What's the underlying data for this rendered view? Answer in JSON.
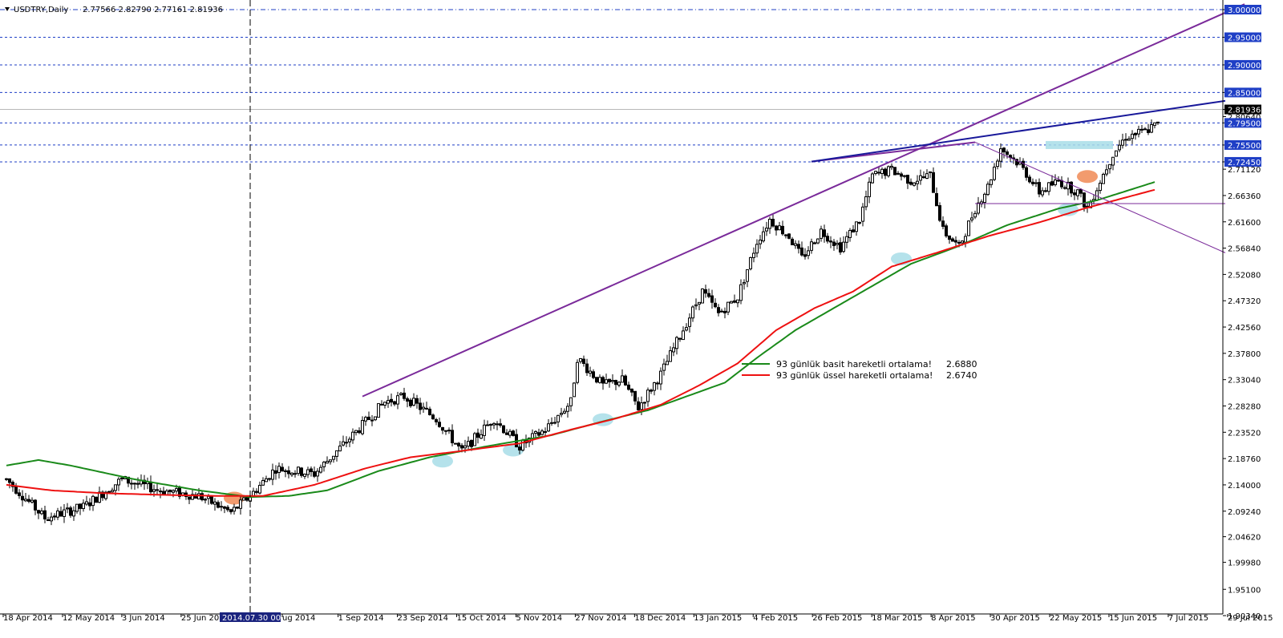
{
  "header": {
    "symbol": "USDTRY,Daily",
    "ohlc": "2.77566 2.82790 2.77161 2.81936"
  },
  "colors": {
    "candle": "#000000",
    "hline": "#1f3fc6",
    "sma": "#1a8a1a",
    "ema": "#ee1111",
    "channel": "#7a2a9a",
    "trendline": "#18189a",
    "price_tag_bg": "#000000",
    "level_tag_bg": "#1f3fc6",
    "highlight_blue": "#a8dde8",
    "highlight_orange": "#f08a55"
  },
  "chart_data": {
    "type": "candlestick",
    "symbol": "USDTRY",
    "timeframe": "Daily",
    "ylim": [
      1.9035,
      3.0
    ],
    "grid": false,
    "y_ticks": [
      "3.00000",
      "2.95000",
      "2.90000",
      "2.85000",
      "2.81936",
      "2.80640",
      "2.79500",
      "2.75500",
      "2.72450",
      "2.71120",
      "2.66360",
      "2.61600",
      "2.56840",
      "2.52080",
      "2.47320",
      "2.42560",
      "2.37800",
      "2.33040",
      "2.28280",
      "2.23520",
      "2.18760",
      "2.14000",
      "2.09240",
      "2.04620",
      "1.99980",
      "1.95100",
      "1.90340"
    ],
    "x_ticks": [
      "18 Apr 2014",
      "12 May 2014",
      "3 Jun 2014",
      "25 Jun 2014",
      "2014.07.30 00:00",
      "ug 2014",
      "1 Sep 2014",
      "23 Sep 2014",
      "15 Oct 2014",
      "5 Nov 2014",
      "27 Nov 2014",
      "18 Dec 2014",
      "13 Jan 2015",
      "4 Feb 2015",
      "26 Feb 2015",
      "18 Mar 2015",
      "8 Apr 2015",
      "30 Apr 2015",
      "22 May 2015",
      "15 Jun 2015",
      "7 Jul 2015",
      "29 Jul 2015"
    ],
    "x_tick_positions": [
      0,
      17,
      34,
      51,
      68,
      80,
      96,
      113,
      130,
      147,
      164,
      181,
      198,
      215,
      232,
      249,
      266,
      283,
      300,
      317,
      334,
      351
    ],
    "crosshair_index": 76,
    "crosshair_date": "2014.07.30 00:00",
    "last_price": 2.81936,
    "horizontal_levels": [
      3.0,
      2.95,
      2.9,
      2.85,
      2.795,
      2.755,
      2.7245
    ],
    "guide_anchors": [
      {
        "d": 0,
        "p": 2.15
      },
      {
        "d": 12,
        "p": 2.08
      },
      {
        "d": 24,
        "p": 2.1
      },
      {
        "d": 36,
        "p": 2.15
      },
      {
        "d": 48,
        "p": 2.13
      },
      {
        "d": 60,
        "p": 2.12
      },
      {
        "d": 70,
        "p": 2.09
      },
      {
        "d": 76,
        "p": 2.12
      },
      {
        "d": 84,
        "p": 2.17
      },
      {
        "d": 96,
        "p": 2.16
      },
      {
        "d": 108,
        "p": 2.23
      },
      {
        "d": 118,
        "p": 2.29
      },
      {
        "d": 124,
        "p": 2.3
      },
      {
        "d": 134,
        "p": 2.26
      },
      {
        "d": 142,
        "p": 2.2
      },
      {
        "d": 152,
        "p": 2.26
      },
      {
        "d": 160,
        "p": 2.21
      },
      {
        "d": 168,
        "p": 2.24
      },
      {
        "d": 176,
        "p": 2.29
      },
      {
        "d": 178,
        "p": 2.37
      },
      {
        "d": 186,
        "p": 2.32
      },
      {
        "d": 192,
        "p": 2.33
      },
      {
        "d": 197,
        "p": 2.28
      },
      {
        "d": 204,
        "p": 2.34
      },
      {
        "d": 210,
        "p": 2.41
      },
      {
        "d": 217,
        "p": 2.49
      },
      {
        "d": 222,
        "p": 2.45
      },
      {
        "d": 228,
        "p": 2.48
      },
      {
        "d": 234,
        "p": 2.58
      },
      {
        "d": 238,
        "p": 2.62
      },
      {
        "d": 244,
        "p": 2.59
      },
      {
        "d": 248,
        "p": 2.55
      },
      {
        "d": 254,
        "p": 2.6
      },
      {
        "d": 260,
        "p": 2.57
      },
      {
        "d": 266,
        "p": 2.62
      },
      {
        "d": 270,
        "p": 2.7
      },
      {
        "d": 276,
        "p": 2.71
      },
      {
        "d": 282,
        "p": 2.69
      },
      {
        "d": 288,
        "p": 2.7
      },
      {
        "d": 292,
        "p": 2.6
      },
      {
        "d": 297,
        "p": 2.57
      },
      {
        "d": 302,
        "p": 2.64
      },
      {
        "d": 306,
        "p": 2.68
      },
      {
        "d": 310,
        "p": 2.75
      },
      {
        "d": 316,
        "p": 2.72
      },
      {
        "d": 322,
        "p": 2.67
      },
      {
        "d": 328,
        "p": 2.69
      },
      {
        "d": 334,
        "p": 2.67
      },
      {
        "d": 337,
        "p": 2.64
      },
      {
        "d": 341,
        "p": 2.69
      },
      {
        "d": 345,
        "p": 2.74
      },
      {
        "d": 349,
        "p": 2.77
      },
      {
        "d": 355,
        "p": 2.78
      },
      {
        "d": 358,
        "p": 2.79
      }
    ],
    "sma_anchors": [
      {
        "d": 0,
        "p": 2.175
      },
      {
        "d": 10,
        "p": 2.185
      },
      {
        "d": 20,
        "p": 2.175
      },
      {
        "d": 40,
        "p": 2.15
      },
      {
        "d": 60,
        "p": 2.13
      },
      {
        "d": 76,
        "p": 2.118
      },
      {
        "d": 88,
        "p": 2.12
      },
      {
        "d": 100,
        "p": 2.13
      },
      {
        "d": 116,
        "p": 2.165
      },
      {
        "d": 132,
        "p": 2.19
      },
      {
        "d": 150,
        "p": 2.21
      },
      {
        "d": 170,
        "p": 2.23
      },
      {
        "d": 186,
        "p": 2.255
      },
      {
        "d": 200,
        "p": 2.275
      },
      {
        "d": 212,
        "p": 2.3
      },
      {
        "d": 224,
        "p": 2.325
      },
      {
        "d": 234,
        "p": 2.37
      },
      {
        "d": 246,
        "p": 2.42
      },
      {
        "d": 258,
        "p": 2.46
      },
      {
        "d": 270,
        "p": 2.5
      },
      {
        "d": 282,
        "p": 2.54
      },
      {
        "d": 296,
        "p": 2.57
      },
      {
        "d": 312,
        "p": 2.61
      },
      {
        "d": 328,
        "p": 2.64
      },
      {
        "d": 340,
        "p": 2.655
      },
      {
        "d": 358,
        "p": 2.688
      }
    ],
    "ema_anchors": [
      {
        "d": 0,
        "p": 2.14
      },
      {
        "d": 14,
        "p": 2.13
      },
      {
        "d": 30,
        "p": 2.125
      },
      {
        "d": 48,
        "p": 2.122
      },
      {
        "d": 66,
        "p": 2.12
      },
      {
        "d": 80,
        "p": 2.12
      },
      {
        "d": 96,
        "p": 2.14
      },
      {
        "d": 112,
        "p": 2.17
      },
      {
        "d": 126,
        "p": 2.19
      },
      {
        "d": 140,
        "p": 2.2
      },
      {
        "d": 160,
        "p": 2.215
      },
      {
        "d": 176,
        "p": 2.24
      },
      {
        "d": 190,
        "p": 2.26
      },
      {
        "d": 204,
        "p": 2.285
      },
      {
        "d": 216,
        "p": 2.32
      },
      {
        "d": 228,
        "p": 2.36
      },
      {
        "d": 240,
        "p": 2.42
      },
      {
        "d": 252,
        "p": 2.46
      },
      {
        "d": 264,
        "p": 2.49
      },
      {
        "d": 276,
        "p": 2.535
      },
      {
        "d": 290,
        "p": 2.56
      },
      {
        "d": 306,
        "p": 2.59
      },
      {
        "d": 322,
        "p": 2.615
      },
      {
        "d": 336,
        "p": 2.64
      },
      {
        "d": 358,
        "p": 2.674
      }
    ],
    "lines": [
      {
        "kind": "channel",
        "from": {
          "d": 111,
          "p": 2.3
        },
        "to": {
          "d": 386,
          "p": 3.01
        }
      },
      {
        "kind": "channel",
        "from": {
          "d": 251,
          "p": 2.725
        },
        "to": {
          "d": 302,
          "p": 2.76
        }
      },
      {
        "kind": "trendline",
        "from": {
          "d": 251,
          "p": 2.725
        },
        "to": {
          "d": 380,
          "p": 2.835
        }
      },
      {
        "kind": "thin",
        "from": {
          "d": 302,
          "p": 2.76
        },
        "to": {
          "d": 380,
          "p": 2.56
        }
      },
      {
        "kind": "thin",
        "from": {
          "d": 302,
          "p": 2.649
        },
        "to": {
          "d": 380,
          "p": 2.649
        }
      }
    ],
    "legend": [
      {
        "label": "93 günlük basit hareketli ortalama!",
        "value": "2.6880",
        "color_key": "sma"
      },
      {
        "label": "93 günlük üssel hareketli ortalama!",
        "value": "2.6740",
        "color_key": "ema"
      }
    ],
    "highlights": [
      {
        "shape": "ellipse",
        "color": "blue",
        "d": 136,
        "p": 2.183
      },
      {
        "shape": "ellipse",
        "color": "blue",
        "d": 158,
        "p": 2.203
      },
      {
        "shape": "ellipse",
        "color": "blue",
        "d": 186,
        "p": 2.258
      },
      {
        "shape": "ellipse",
        "color": "blue",
        "d": 279,
        "p": 2.549
      },
      {
        "shape": "ellipse",
        "color": "blue",
        "d": 331,
        "p": 2.638
      },
      {
        "shape": "ellipse",
        "color": "orange",
        "d": 71,
        "p": 2.116
      },
      {
        "shape": "ellipse",
        "color": "orange",
        "d": 337,
        "p": 2.698
      },
      {
        "shape": "rect",
        "color": "blue",
        "from_d": 324,
        "to_d": 345,
        "p": 2.755
      }
    ]
  }
}
